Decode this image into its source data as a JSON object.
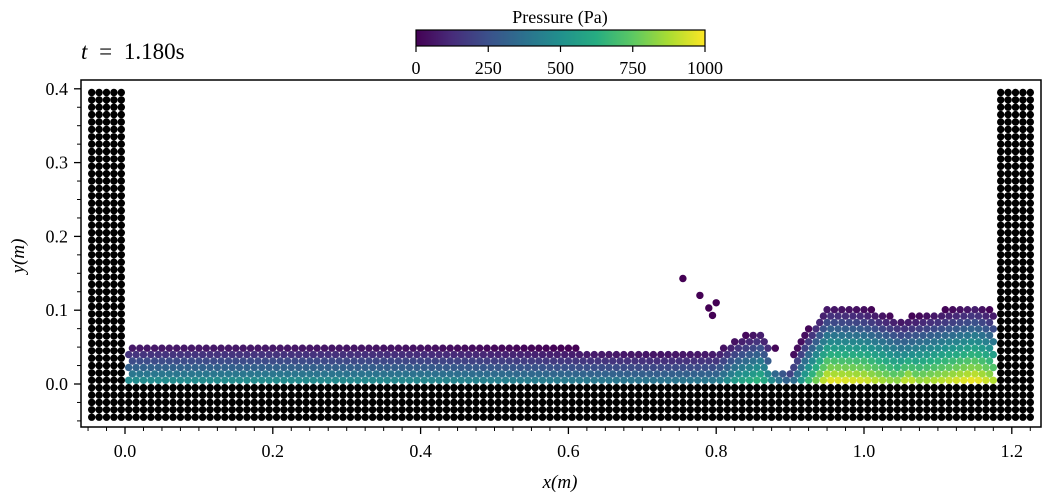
{
  "time_label": {
    "symbol": "t",
    "equals": "=",
    "value": "1.180s"
  },
  "colorbar": {
    "title": "Pressure (Pa)",
    "range": [
      0,
      1000
    ],
    "ticks": [
      0,
      250,
      500,
      750,
      1000
    ],
    "tick_labels": [
      "0",
      "250",
      "500",
      "750",
      "1000"
    ],
    "colormap": "viridis",
    "stops": [
      "#440154",
      "#472c7a",
      "#3b518b",
      "#2c718e",
      "#21908d",
      "#27ad81",
      "#5cc863",
      "#aadc32",
      "#fde725"
    ]
  },
  "chart_data": {
    "type": "scatter",
    "xlabel": "x(m)",
    "ylabel": "y(m)",
    "xlim": [
      -0.06,
      1.24
    ],
    "ylim": [
      -0.06,
      0.41
    ],
    "xticks": [
      0.0,
      0.2,
      0.4,
      0.6,
      0.8,
      1.0,
      1.2
    ],
    "xtick_labels": [
      "0.0",
      "0.2",
      "0.4",
      "0.6",
      "0.8",
      "1.0",
      "1.2"
    ],
    "yticks": [
      0.0,
      0.1,
      0.2,
      0.3,
      0.4
    ],
    "ytick_labels": [
      "0.0",
      "0.1",
      "0.2",
      "0.3",
      "0.4"
    ],
    "particle_spacing": 0.01,
    "boundary_particles": {
      "color": "#000000",
      "left_wall": {
        "x_range": [
          -0.045,
          -0.005
        ],
        "y_range": [
          -0.045,
          0.395
        ]
      },
      "right_wall": {
        "x_range": [
          1.185,
          1.225
        ],
        "y_range": [
          -0.045,
          0.395
        ]
      },
      "floor": {
        "x_range": [
          0.005,
          1.175
        ],
        "y_range": [
          -0.045,
          -0.005
        ]
      }
    },
    "fluid_surface_profile": {
      "x": [
        0.005,
        0.2,
        0.4,
        0.6,
        0.72,
        0.8,
        0.83,
        0.86,
        0.88,
        0.9,
        0.92,
        0.95,
        1.0,
        1.05,
        1.1,
        1.15,
        1.175
      ],
      "y": [
        0.056,
        0.056,
        0.054,
        0.049,
        0.046,
        0.048,
        0.065,
        0.075,
        0.05,
        0.035,
        0.07,
        0.108,
        0.105,
        0.09,
        0.1,
        0.11,
        0.1
      ]
    },
    "splash_particles": {
      "x": [
        0.755,
        0.778,
        0.79,
        0.795,
        0.8
      ],
      "y": [
        0.143,
        0.12,
        0.103,
        0.093,
        0.11
      ]
    },
    "pressure_hotspots": {
      "x": [
        1.06,
        1.16
      ],
      "pressure": [
        1000,
        980
      ]
    }
  }
}
